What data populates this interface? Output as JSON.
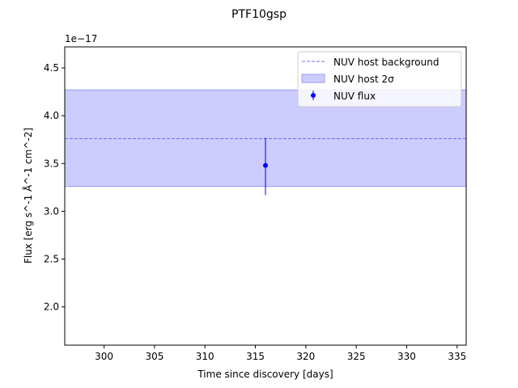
{
  "chart_data": {
    "type": "scatter",
    "title": "PTF10gsp",
    "xlabel": "Time since discovery [days]",
    "ylabel": "Flux [erg s^-1 Å^-1 cm^-2]",
    "y_offset_text": "1e−17",
    "xlim": [
      296.1,
      335.9
    ],
    "ylim": [
      1.6,
      4.72
    ],
    "x_ticks": [
      300,
      305,
      310,
      315,
      320,
      325,
      330,
      335
    ],
    "y_ticks": [
      2.0,
      2.5,
      3.0,
      3.5,
      4.0,
      4.5
    ],
    "y_tick_labels": [
      "2.0",
      "2.5",
      "3.0",
      "3.5",
      "4.0",
      "4.5"
    ],
    "background": {
      "name": "NUV host background",
      "value": 3.76,
      "color": "#6b6bff",
      "style": "dashed"
    },
    "band": {
      "name": "NUV host 2σ",
      "lower": 3.26,
      "upper": 4.27,
      "color": "#ccccff"
    },
    "series": [
      {
        "name": "NUV flux",
        "color": "#0000ff",
        "points": [
          {
            "x": 316.0,
            "y": 3.48,
            "yerr_low": 0.31,
            "yerr_high": 0.29
          }
        ]
      }
    ],
    "legend_position": "upper right"
  }
}
